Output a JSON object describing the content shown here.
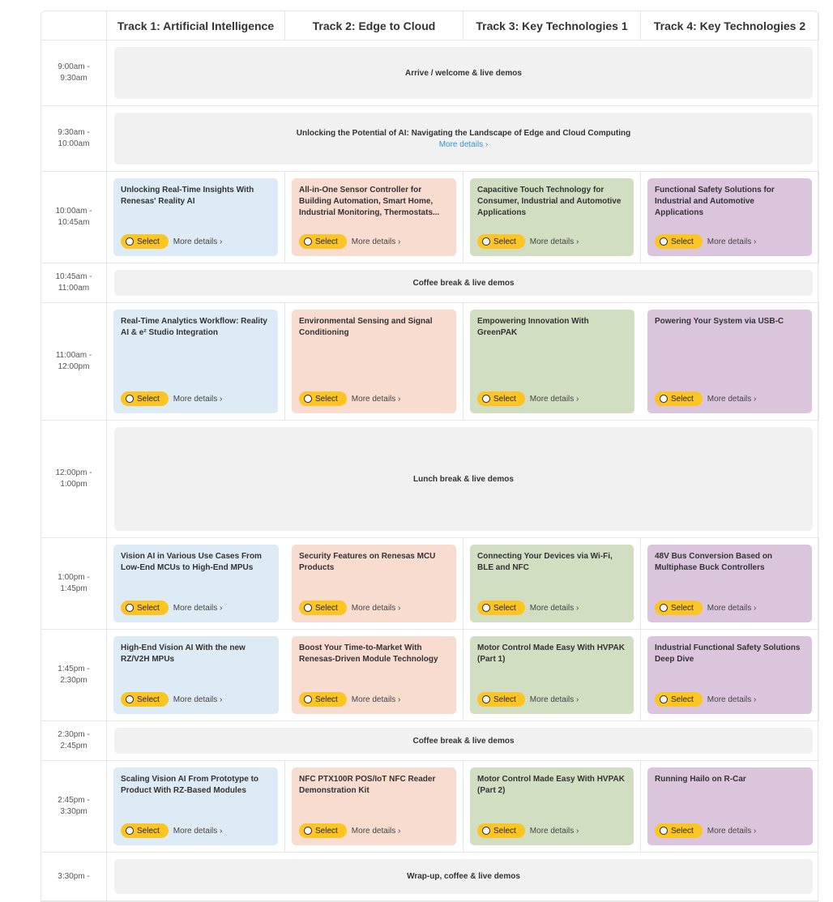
{
  "header": {
    "corner": "",
    "tracks": [
      "Track 1: Artificial Intelligence",
      "Track 2: Edge to Cloud",
      "Track 3: Key Technologies 1",
      "Track 4: Key Technologies 2"
    ]
  },
  "labels": {
    "select": "Select",
    "more": "More details ›"
  },
  "rows": [
    {
      "time": "9:00am -\n9:30am",
      "span": "Arrive / welcome & live demos"
    },
    {
      "time": "9:30am -\n10:00am",
      "span": "Unlocking the Potential of AI: Navigating the Landscape of Edge and Cloud Computing",
      "more": "More details ›"
    },
    {
      "time": "10:00am -\n10:45am",
      "sessions": [
        "Unlocking Real-Time Insights With Renesas' Reality AI",
        "All-in-One Sensor Controller for Building Automation, Smart Home, Industrial Monitoring, Thermostats...",
        "Capacitive Touch Technology for Consumer, Industrial and Automotive Applications",
        "Functional Safety Solutions for Industrial and Automotive Applications"
      ]
    },
    {
      "time": "10:45am -\n11:00am",
      "span": "Coffee break & live demos"
    },
    {
      "time": "11:00am -\n12:00pm",
      "sessions": [
        "Real-Time Analytics Workflow: Reality AI & e² Studio Integration",
        "Environmental Sensing and Signal Conditioning",
        "Empowering Innovation With GreenPAK",
        "Powering Your System via USB-C"
      ]
    },
    {
      "time": "12:00pm -\n1:00pm",
      "span": "Lunch break & live demos"
    },
    {
      "time": "1:00pm -\n1:45pm",
      "sessions": [
        "Vision AI in Various Use Cases From Low-End MCUs to High-End MPUs",
        "Security Features on Renesas MCU Products",
        "Connecting Your Devices via Wi-Fi, BLE and NFC",
        "48V Bus Conversion Based on Multiphase Buck Controllers"
      ]
    },
    {
      "time": "1:45pm -\n2:30pm",
      "sessions": [
        "High-End Vision AI With the new RZ/V2H MPUs",
        "Boost Your Time-to-Market With Renesas-Driven Module Technology",
        "Motor Control Made Easy With HVPAK (Part 1)",
        "Industrial Functional Safety Solutions Deep Dive"
      ]
    },
    {
      "time": "2:30pm -\n2:45pm",
      "span": "Coffee break & live demos"
    },
    {
      "time": "2:45pm -\n3:30pm",
      "sessions": [
        "Scaling Vision AI From Prototype to Product With RZ-Based Modules",
        "NFC PTX100R POS/IoT NFC Reader Demonstration Kit",
        "Motor Control Made Easy With HVPAK (Part 2)",
        "Running Hailo on R-Car"
      ]
    },
    {
      "time": "3:30pm -\n",
      "span": "Wrap-up, coffee & live demos"
    }
  ],
  "colors": {
    "track1": "#dcebf5",
    "track2": "#f7dccf",
    "track3": "#d2dec2",
    "track4": "#dbc5dd",
    "select": "#fcc524",
    "link": "#2d97d6"
  }
}
